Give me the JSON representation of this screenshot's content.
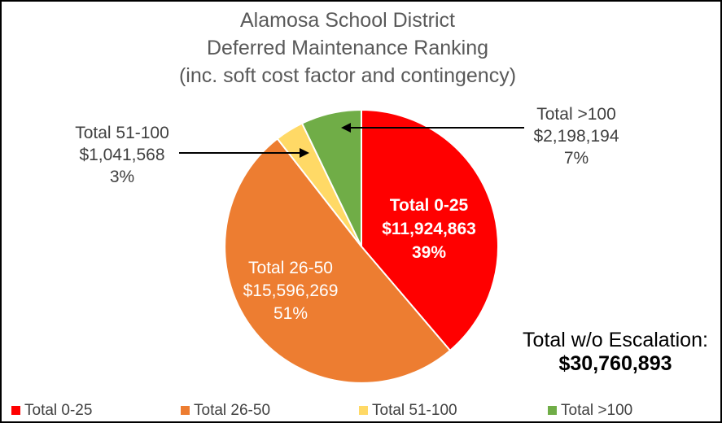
{
  "chart_data": {
    "type": "pie",
    "title": "Alamosa School District",
    "subtitle": "Deferred Maintenance Ranking",
    "subtitle2": "(inc. soft cost factor and contingency)",
    "start_angle_deg": 0,
    "slices": [
      {
        "name": "Total 0-25",
        "value": 11924863,
        "value_label": "$11,924,863",
        "percent_label": "39%",
        "color": "#ff0000"
      },
      {
        "name": "Total 26-50",
        "value": 15596269,
        "value_label": "$15,596,269",
        "percent_label": "51%",
        "color": "#ed7d31"
      },
      {
        "name": "Total 51-100",
        "value": 1041568,
        "value_label": "$1,041,568",
        "percent_label": "3%",
        "color": "#ffd966"
      },
      {
        "name": "Total >100",
        "value": 2198194,
        "value_label": "$2,198,194",
        "percent_label": "7%",
        "color": "#70ad47"
      }
    ],
    "annotation": {
      "text": "Total w/o Escalation:",
      "value": "$30,760,893"
    },
    "legend_position": "bottom"
  }
}
